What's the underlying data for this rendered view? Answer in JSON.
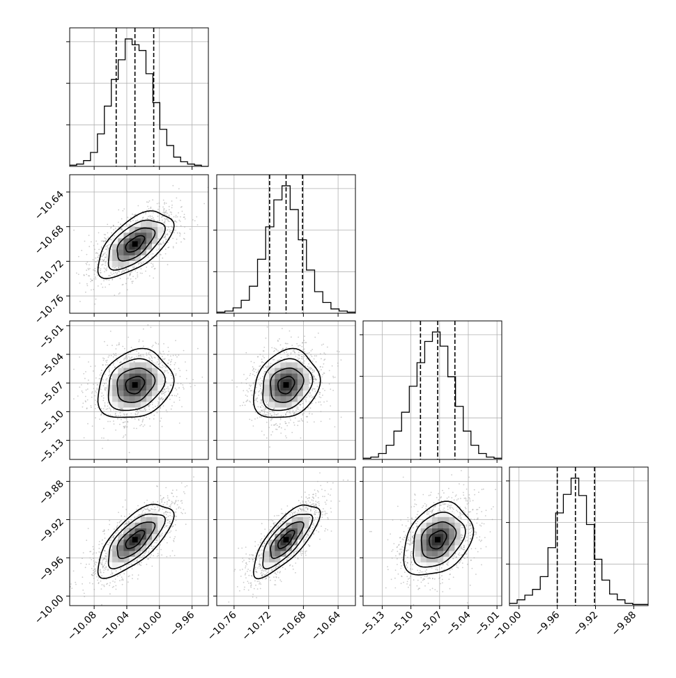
{
  "chart_data": {
    "type": "corner",
    "parameters": [
      {
        "ticks": [
          "−10.08",
          "−10.04",
          "−10.00",
          "−9.96"
        ],
        "tick_values": [
          -10.08,
          -10.04,
          -10.0,
          -9.96
        ],
        "range": [
          -10.11,
          -9.94
        ],
        "median": -10.03,
        "q16": -10.053,
        "q84": -10.007,
        "sigma": 0.023
      },
      {
        "ticks": [
          "−10.76",
          "−10.72",
          "−10.68",
          "−10.64"
        ],
        "tick_values": [
          -10.76,
          -10.72,
          -10.68,
          -10.64
        ],
        "range": [
          -10.78,
          -10.62
        ],
        "median": -10.7,
        "q16": -10.719,
        "q84": -10.681,
        "sigma": 0.019
      },
      {
        "ticks": [
          "−5.13",
          "−5.10",
          "−5.07",
          "−5.04",
          "−5.01"
        ],
        "tick_values": [
          -5.13,
          -5.1,
          -5.07,
          -5.04,
          -5.01
        ],
        "range": [
          -5.15,
          -5.005
        ],
        "median": -5.072,
        "q16": -5.09,
        "q84": -5.054,
        "sigma": 0.018
      },
      {
        "ticks": [
          "−10.00",
          "−9.96",
          "−9.92",
          "−9.88"
        ],
        "tick_values": [
          -10.0,
          -9.96,
          -9.92,
          -9.88
        ],
        "range": [
          -10.01,
          -9.865
        ],
        "median": -9.941,
        "q16": -9.96,
        "q84": -9.921,
        "sigma": 0.019
      }
    ],
    "correlations": [
      [
        1,
        0.6,
        0.2,
        0.7
      ],
      [
        0.6,
        1,
        0.2,
        0.75
      ],
      [
        0.2,
        0.2,
        1,
        0.3
      ],
      [
        0.7,
        0.75,
        0.3,
        1
      ]
    ],
    "histograms": [
      [
        1,
        2,
        5,
        12,
        28,
        52,
        75,
        92,
        110,
        105,
        100,
        80,
        55,
        32,
        18,
        8,
        4,
        2,
        1,
        0
      ],
      [
        1,
        2,
        5,
        12,
        25,
        50,
        80,
        105,
        118,
        96,
        68,
        40,
        20,
        10,
        4,
        2,
        1
      ],
      [
        1,
        2,
        5,
        12,
        24,
        40,
        62,
        82,
        100,
        108,
        96,
        70,
        45,
        24,
        12,
        5,
        2,
        1
      ],
      [
        2,
        5,
        9,
        14,
        25,
        50,
        80,
        96,
        110,
        95,
        70,
        40,
        22,
        10,
        5,
        2,
        1,
        1
      ]
    ],
    "grid": true,
    "quantile_lines": "dashed"
  }
}
